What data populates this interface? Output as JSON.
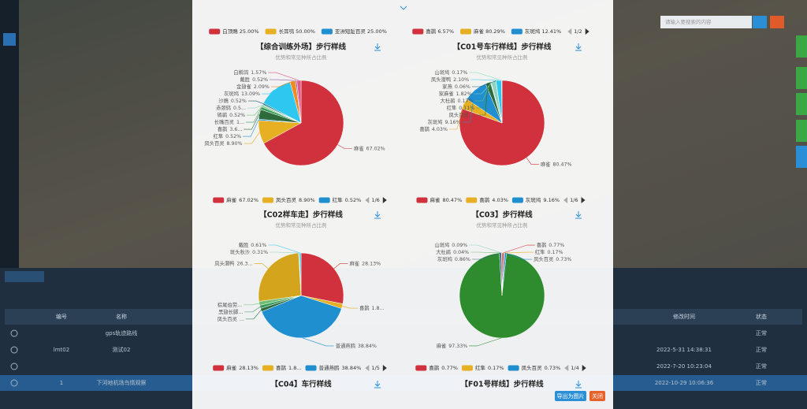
{
  "app": {
    "search_placeholder": "请输入要搜索的内容",
    "table_headers": [
      "编号",
      "名称",
      "修改时间",
      "状态"
    ],
    "table_rows": [
      {
        "name": "gps轨迹路线",
        "status": "正常"
      },
      {
        "id": "lmt02",
        "name": "测试02",
        "modified": "2022-5-31 14:38:31",
        "status": "正常"
      },
      {
        "modified": "2022-7-20 10:23:04",
        "status": "正常"
      },
      {
        "id": "1",
        "name": "下河地机场鸟情观察",
        "modified": "2022-10-29 10:06:36",
        "status": "正常"
      }
    ]
  },
  "modal": {
    "scrolled_legends": [
      {
        "items": [
          "白顶鵖 25.00%",
          "长耳鸮 50.00%",
          "亚洲短趾百灵 25.00%"
        ]
      },
      {
        "items": [
          "喜鹊 6.57%",
          "麻雀 80.29%",
          "灰斑鸠 12.41%"
        ],
        "page": "1/2"
      }
    ],
    "next_titles": [
      "【C04】车行样线",
      "【F01号样线】步行样线"
    ],
    "buttons": [
      "导出为图片",
      "关闭"
    ]
  },
  "chart_data": [
    {
      "type": "pie",
      "title": "【综合训练外场】步行样线",
      "subtitle": "优势和常见种所占比例",
      "legend_page": "1/6",
      "categories": [
        "麻雀",
        "凤头百灵",
        "红隼",
        "喜鹊",
        "长嘴百灵",
        "鸲鹟",
        "赤颈鸫",
        "沙鵖",
        "灰斑鸠",
        "金翅雀",
        "戴胜",
        "白鹡鸰"
      ],
      "values": [
        67.02,
        8.9,
        0.52,
        3.66,
        1.05,
        0.52,
        0.52,
        0.52,
        13.09,
        2.09,
        0.52,
        1.57
      ],
      "value_labels": [
        "67.02%",
        "8.90%",
        "0.52%",
        "3.6...",
        "1...",
        "0.52%",
        "0.5...",
        "0.52%",
        "13.09%",
        "2.09%",
        "0.52%",
        "1.57%"
      ],
      "colors": [
        "#d0313c",
        "#e6b022",
        "#1f8fd0",
        "#2e6b3c",
        "#3a9a5c",
        "#6fbf73",
        "#8fd3c0",
        "#1a5e7a",
        "#2ec7f0",
        "#f08a24",
        "#8e5ea2",
        "#e05a8a"
      ]
    },
    {
      "type": "pie",
      "title": "【C01号车行样线】步行样线",
      "subtitle": "优势和常见种所占比例",
      "legend_page": "1/6",
      "categories": [
        "麻雀",
        "喜鹊",
        "灰斑鸠",
        "凤头百灵",
        "红隼",
        "大杜鹃",
        "家麻雀",
        "家燕",
        "凤头潜鸭",
        "山斑鸠"
      ],
      "values": [
        80.47,
        4.03,
        9.16,
        1.91,
        0.11,
        0.17,
        1.82,
        0.06,
        2.1,
        0.17
      ],
      "value_labels": [
        "80.47%",
        "4.03%",
        "9.16%",
        "...",
        "0.11%",
        "0.17%",
        "1.82%",
        "0.06%",
        "2.10%",
        "0.17%"
      ],
      "colors": [
        "#d0313c",
        "#e6b022",
        "#1f8fd0",
        "#2e6b3c",
        "#3a9a5c",
        "#6fbf73",
        "#8fd3c0",
        "#1a5e7a",
        "#2ec7f0",
        "#7be0c0"
      ]
    },
    {
      "type": "pie",
      "title": "【C02样车走】步行样线",
      "subtitle": "优势和常见种所占比例",
      "legend_page": "1/5",
      "categories": [
        "麻雀",
        "喜鹊",
        "普通燕鸥",
        "凤头百灵",
        "黑翅长脚...",
        "棕尾伯劳...",
        "凤头潜鸭",
        "斑头秋沙",
        "戴胜"
      ],
      "values": [
        28.13,
        1.83,
        38.84,
        1.28,
        1.2,
        1.5,
        26.3,
        0.31,
        0.61
      ],
      "value_labels": [
        "28.13%",
        "1.8...",
        "38.84%",
        "...",
        "",
        "",
        "26.3...",
        "0.31%",
        "0.61%"
      ],
      "colors": [
        "#d0313c",
        "#e6b022",
        "#1f8fd0",
        "#2e6b3c",
        "#3a9a5c",
        "#6fbf73",
        "#d4a41c",
        "#8fd3c0",
        "#2ec7f0"
      ]
    },
    {
      "type": "pie",
      "title": "【C03】步行样线",
      "subtitle": "优势和常见种所占比例",
      "legend_page": "1/4",
      "categories": [
        "喜鹊",
        "红隼",
        "凤头百灵",
        "麻雀",
        "灰斑鸠",
        "大杜鹃",
        "山斑鸠"
      ],
      "values": [
        0.77,
        0.17,
        0.73,
        97.33,
        0.86,
        0.04,
        0.09
      ],
      "value_labels": [
        "0.77%",
        "0.17%",
        "0.73%",
        "97.33%",
        "0.86%",
        "0.04%",
        "0.09%"
      ],
      "colors": [
        "#d0313c",
        "#e6b022",
        "#1f8fd0",
        "#2e8b2e",
        "#3a6a8c",
        "#6fbf73",
        "#8fd3c0"
      ]
    }
  ]
}
